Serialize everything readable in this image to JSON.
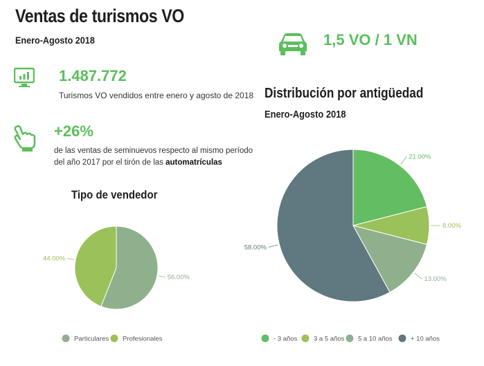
{
  "header": {
    "title": "Ventas de turismos VO",
    "subtitle": "Enero-Agosto 2018"
  },
  "ratio": {
    "icon": "car-icon",
    "text": "1,5 VO / 1 VN"
  },
  "stat_sold": {
    "icon": "monitor-chart-icon",
    "value": "1.487.772",
    "description": "Turismos VO vendidos entre enero y agosto de 2018"
  },
  "stat_growth": {
    "icon": "pointing-hand-icon",
    "value": "+26%",
    "description_part1": "de las ventas de seminuevos respecto al mismo período del año 2017 por el tirón de las ",
    "description_bold": "automatrículas"
  },
  "colors": {
    "accent": "#5bbf5b"
  },
  "chart_data": [
    {
      "type": "pie",
      "title": "Tipo de vendedor",
      "categories": [
        "Particulares",
        "Profesionales"
      ],
      "values": [
        56.0,
        44.0
      ],
      "value_labels": [
        "56.00%",
        "44.00%"
      ],
      "colors": [
        "#8fb08c",
        "#9bc15a"
      ],
      "legend": "bottom"
    },
    {
      "type": "pie",
      "title": "Distribución por antigüedad",
      "subtitle": "Enero-Agosto 2018",
      "categories": [
        "- 3 años",
        "3 a 5 años",
        "5 a 10 años",
        "+ 10 años"
      ],
      "values": [
        21.0,
        8.0,
        13.0,
        58.0
      ],
      "value_labels": [
        "21.00%",
        "8.00%",
        "13.00%",
        "58.00%"
      ],
      "colors": [
        "#63bd63",
        "#9bc15a",
        "#8fb08c",
        "#607880"
      ],
      "legend": "bottom"
    }
  ]
}
